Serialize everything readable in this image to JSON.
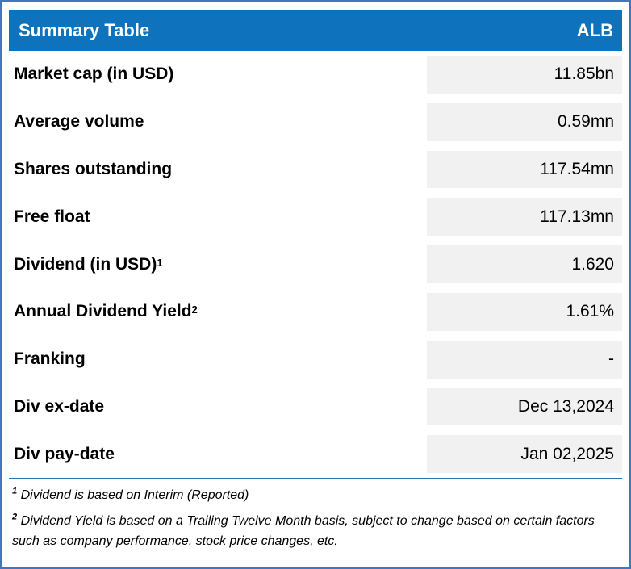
{
  "header": {
    "title": "Summary Table",
    "ticker": "ALB"
  },
  "rows": [
    {
      "label": "Market cap (in USD)",
      "sup": "",
      "value": "11.85bn"
    },
    {
      "label": "Average volume",
      "sup": "",
      "value": "0.59mn"
    },
    {
      "label": "Shares outstanding",
      "sup": "",
      "value": "117.54mn"
    },
    {
      "label": "Free float",
      "sup": "",
      "value": "117.13mn"
    },
    {
      "label": "Dividend (in USD)",
      "sup": "1",
      "value": "1.620"
    },
    {
      "label": "Annual Dividend Yield",
      "sup": "2",
      "value": "1.61%"
    },
    {
      "label": "Franking",
      "sup": "",
      "value": "-"
    },
    {
      "label": "Div ex-date",
      "sup": "",
      "value": "Dec 13,2024"
    },
    {
      "label": "Div pay-date",
      "sup": "",
      "value": "Jan 02,2025"
    }
  ],
  "footnotes": [
    {
      "sup": "1",
      "text": "Dividend is based on Interim (Reported)"
    },
    {
      "sup": "2",
      "text": "Dividend Yield is based on a Trailing Twelve Month basis, subject to change based on certain factors such as company performance, stock price changes, etc."
    }
  ],
  "colors": {
    "header_bg": "#0f72bc",
    "outer_border": "#4472c4",
    "value_cell_bg": "#f1f1f1",
    "separator_line": "#2e75b6",
    "header_text": "#ffffff",
    "body_text": "#000000"
  }
}
